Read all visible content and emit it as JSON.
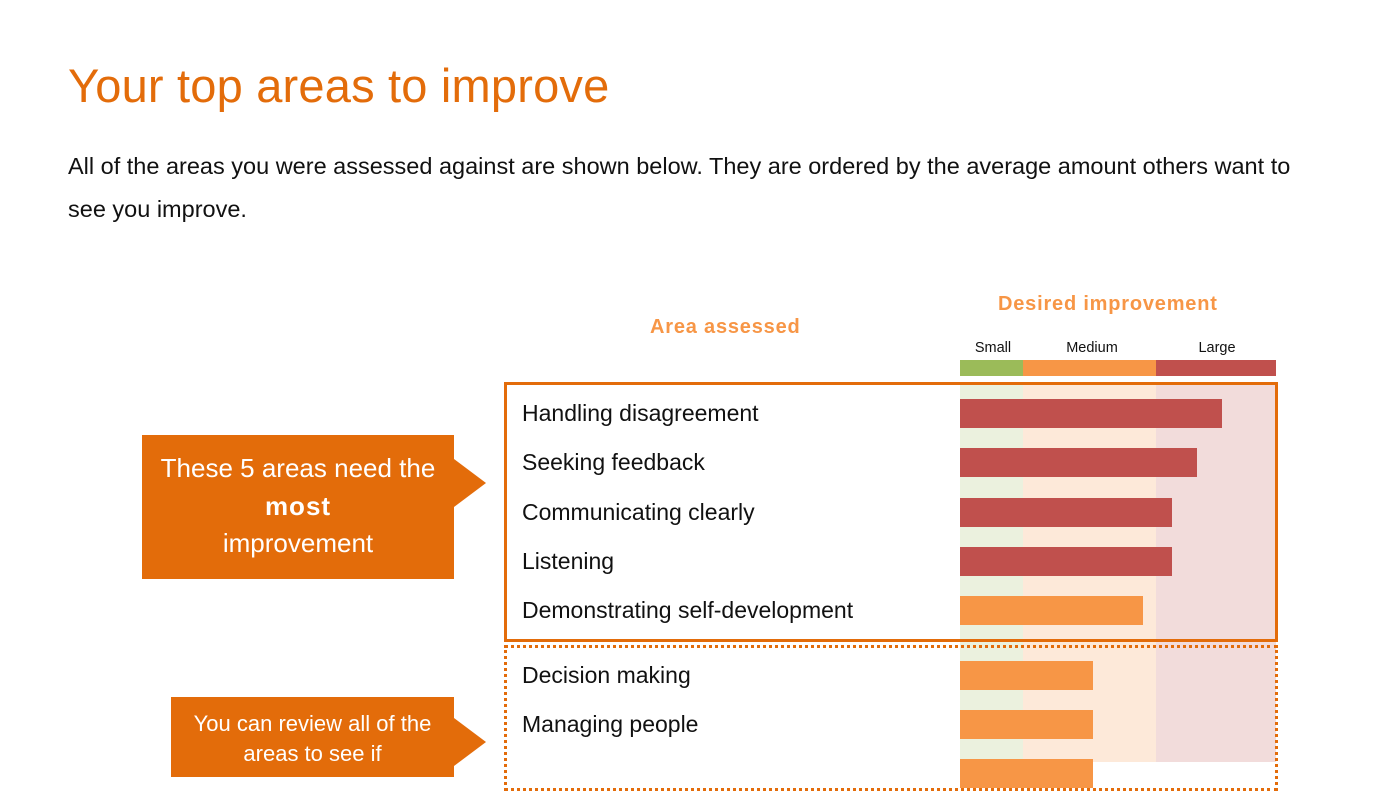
{
  "page": {
    "title": "Your top areas to improve",
    "intro": "All of the areas you were assessed against are shown below. They are ordered by the average amount others want to see you improve."
  },
  "chart_data": {
    "type": "bar",
    "orientation": "horizontal",
    "column_header_area": "Area assessed",
    "column_header_improvement": "Desired improvement",
    "scale_labels": [
      "Small",
      "Medium",
      "Large"
    ],
    "scale_colors": {
      "Small": "#9bbb59",
      "Medium": "#f79646",
      "Large": "#c0504d"
    },
    "band_colors": {
      "Small": "#ebf1de",
      "Medium": "#fde9d9",
      "Large": "#f2dcdb"
    },
    "xlim": [
      0,
      1
    ],
    "scale_bounds": [
      0,
      0.2,
      0.62,
      1
    ],
    "categories": [
      "Handling disagreement",
      "Seeking feedback",
      "Communicating clearly",
      "Listening",
      "Demonstrating self-development",
      "Decision making",
      "Managing people",
      ""
    ],
    "values": [
      0.83,
      0.75,
      0.67,
      0.67,
      0.58,
      0.42,
      0.42,
      0.42
    ],
    "bar_levels": [
      "Large",
      "Large",
      "Large",
      "Large",
      "Medium",
      "Medium",
      "Medium",
      "Medium"
    ],
    "group_top": {
      "count": 5,
      "callout_before_bold": "These 5 areas need the",
      "callout_bold": "most",
      "callout_after_bold": "improvement"
    },
    "group_rest": {
      "callout_text": "You can review all of the areas to see if"
    }
  }
}
